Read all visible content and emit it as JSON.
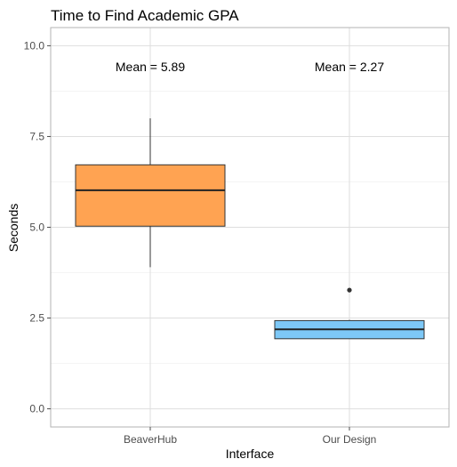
{
  "chart_data": {
    "type": "box",
    "title": "Time to Find Academic GPA",
    "xlabel": "Interface",
    "ylabel": "Seconds",
    "ylim": [
      -0.5,
      10.5
    ],
    "yticks": [
      "0.0",
      "2.5",
      "5.0",
      "7.5",
      "10.0"
    ],
    "ytick_values": [
      0,
      2.5,
      5,
      7.5,
      10
    ],
    "grid": true,
    "series": [
      {
        "category": "BeaverHub",
        "color": "#FFA352",
        "min": 3.9,
        "q1": 5.03,
        "median": 6.02,
        "q3": 6.72,
        "max": 8.0,
        "outliers": [],
        "annotation": "Mean = 5.89",
        "annotation_y": 9.2
      },
      {
        "category": "Our Design",
        "color": "#7DC8F7",
        "min": 1.93,
        "q1": 1.93,
        "median": 2.19,
        "q3": 2.43,
        "max": 2.45,
        "outliers": [
          3.27
        ],
        "annotation": "Mean = 2.27",
        "annotation_y": 9.2
      }
    ]
  }
}
